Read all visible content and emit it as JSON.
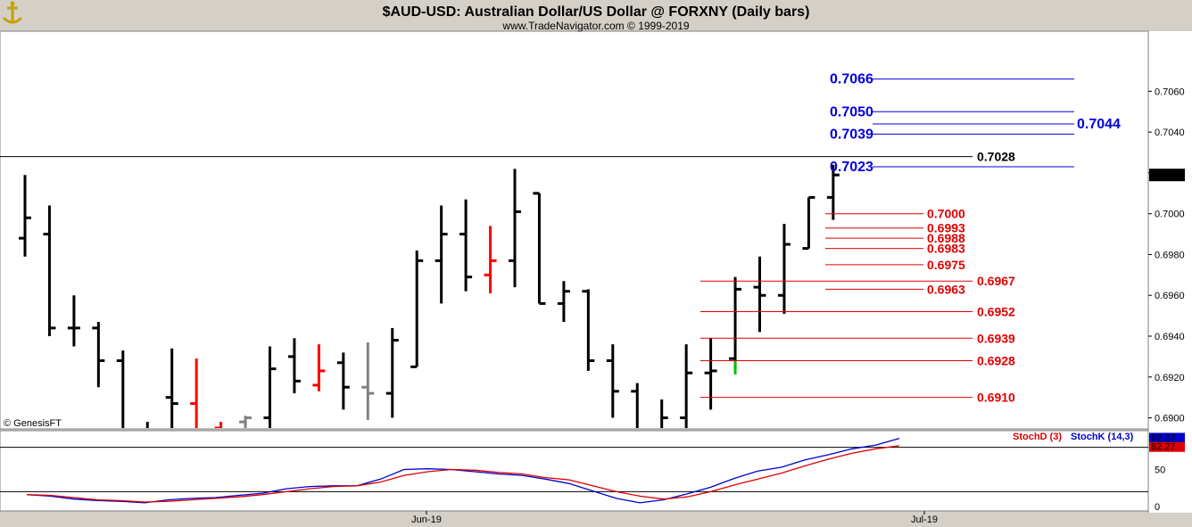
{
  "header": {
    "title": "$AUD-USD:  Australian Dollar/US Dollar @ FORXNY  (Daily bars)",
    "subtitle": "www.TradeNavigator.com © 1999-2019",
    "logo_icon": "anchor-logo-icon"
  },
  "watermark": "© GenesisFT",
  "colors": {
    "up": "#000000",
    "down_red": "#ff0000",
    "gray": "#808080",
    "green": "#00c000",
    "blue_level": "#0000e0",
    "red_level": "#e00000",
    "stoch_k": "#0000cc",
    "stoch_d": "#dd0000"
  },
  "chart_data": [
    {
      "type": "bar",
      "subtype": "ohlc",
      "title": "$AUD-USD:  Australian Dollar/US Dollar @ FORXNY  (Daily bars)",
      "y_ticks": [
        "0.6900",
        "0.6920",
        "0.6940",
        "0.6960",
        "0.6980",
        "0.7000",
        "0.7020",
        "0.7040",
        "0.7060"
      ],
      "ylim": [
        0.6895,
        0.7089
      ],
      "x_ticks": [
        "Jun-19",
        "Jul-19"
      ],
      "last_price": "0.7019",
      "horizontal_line": 0.7028,
      "bars": [
        {
          "o": 0.6988,
          "h": 0.7019,
          "l": 0.6979,
          "c": 0.6998,
          "color": "up"
        },
        {
          "o": 0.699,
          "h": 0.7004,
          "l": 0.694,
          "c": 0.6944,
          "color": "up"
        },
        {
          "o": 0.6944,
          "h": 0.696,
          "l": 0.6935,
          "c": 0.6944,
          "color": "up"
        },
        {
          "o": 0.6944,
          "h": 0.6947,
          "l": 0.6915,
          "c": 0.6928,
          "color": "up"
        },
        {
          "o": 0.6928,
          "h": 0.6933,
          "l": 0.688,
          "c": 0.6894,
          "color": "up"
        },
        {
          "o": 0.6894,
          "h": 0.6898,
          "l": 0.687,
          "c": 0.6888,
          "color": "up"
        },
        {
          "o": 0.691,
          "h": 0.6934,
          "l": 0.689,
          "c": 0.6907,
          "color": "up"
        },
        {
          "o": 0.6907,
          "h": 0.6929,
          "l": 0.688,
          "c": 0.689,
          "color": "red"
        },
        {
          "o": 0.6895,
          "h": 0.6898,
          "l": 0.687,
          "c": 0.688,
          "color": "red"
        },
        {
          "o": 0.6898,
          "h": 0.6901,
          "l": 0.6885,
          "c": 0.69,
          "color": "gray"
        },
        {
          "o": 0.69,
          "h": 0.6935,
          "l": 0.6892,
          "c": 0.6924,
          "color": "up"
        },
        {
          "o": 0.693,
          "h": 0.6939,
          "l": 0.6912,
          "c": 0.6918,
          "color": "up"
        },
        {
          "o": 0.6916,
          "h": 0.6936,
          "l": 0.6913,
          "c": 0.6923,
          "color": "red"
        },
        {
          "o": 0.6927,
          "h": 0.6932,
          "l": 0.6904,
          "c": 0.6915,
          "color": "up"
        },
        {
          "o": 0.6915,
          "h": 0.6937,
          "l": 0.6899,
          "c": 0.6912,
          "color": "gray"
        },
        {
          "o": 0.6912,
          "h": 0.6944,
          "l": 0.69,
          "c": 0.6938,
          "color": "up"
        },
        {
          "o": 0.6925,
          "h": 0.6982,
          "l": 0.6925,
          "c": 0.6977,
          "color": "up"
        },
        {
          "o": 0.6977,
          "h": 0.7004,
          "l": 0.6956,
          "c": 0.699,
          "color": "up"
        },
        {
          "o": 0.699,
          "h": 0.7007,
          "l": 0.6962,
          "c": 0.6969,
          "color": "up"
        },
        {
          "o": 0.697,
          "h": 0.6994,
          "l": 0.6961,
          "c": 0.6977,
          "color": "red"
        },
        {
          "o": 0.6977,
          "h": 0.7022,
          "l": 0.6964,
          "c": 0.7001,
          "color": "up"
        },
        {
          "o": 0.701,
          "h": 0.701,
          "l": 0.6956,
          "c": 0.6956,
          "color": "up"
        },
        {
          "o": 0.6956,
          "h": 0.6967,
          "l": 0.6947,
          "c": 0.6962,
          "color": "up"
        },
        {
          "o": 0.6962,
          "h": 0.6963,
          "l": 0.6923,
          "c": 0.6928,
          "color": "up"
        },
        {
          "o": 0.6928,
          "h": 0.6936,
          "l": 0.69,
          "c": 0.6913,
          "color": "up"
        },
        {
          "o": 0.6913,
          "h": 0.6917,
          "l": 0.688,
          "c": 0.6893,
          "color": "up"
        },
        {
          "o": 0.6893,
          "h": 0.6909,
          "l": 0.688,
          "c": 0.69,
          "color": "up"
        },
        {
          "o": 0.69,
          "h": 0.6936,
          "l": 0.689,
          "c": 0.6922,
          "color": "up"
        },
        {
          "o": 0.6922,
          "h": 0.6939,
          "l": 0.6904,
          "c": 0.6923,
          "color": "up"
        },
        {
          "o": 0.6929,
          "h": 0.6969,
          "l": 0.6924,
          "c": 0.6963,
          "color": "up"
        },
        {
          "o": 0.6964,
          "h": 0.6979,
          "l": 0.6942,
          "c": 0.696,
          "color": "up"
        },
        {
          "o": 0.696,
          "h": 0.6995,
          "l": 0.6951,
          "c": 0.6985,
          "color": "up"
        },
        {
          "o": 0.6983,
          "h": 0.7008,
          "l": 0.6983,
          "c": 0.7008,
          "color": "up"
        },
        {
          "o": 0.7008,
          "h": 0.7024,
          "l": 0.6997,
          "c": 0.7019,
          "color": "up"
        }
      ],
      "green_bar_segment": {
        "bar_index": 29,
        "from": 0.6928,
        "to": 0.6923
      },
      "blue_levels": [
        {
          "label": "0.7066",
          "value": 0.7066
        },
        {
          "label": "0.7050",
          "value": 0.705
        },
        {
          "label": "0.7044",
          "value": 0.7044
        },
        {
          "label": "0.7039",
          "value": 0.7039
        },
        {
          "label": "0.7023",
          "value": 0.7023
        }
      ],
      "black_level": {
        "label": "0.7028",
        "value": 0.7028
      },
      "red_levels": [
        {
          "label": "0.7000",
          "value": 0.7
        },
        {
          "label": "0.6993",
          "value": 0.6993
        },
        {
          "label": "0.6988",
          "value": 0.6988
        },
        {
          "label": "0.6983",
          "value": 0.6983
        },
        {
          "label": "0.6975",
          "value": 0.6975
        },
        {
          "label": "0.6967",
          "value": 0.6967
        },
        {
          "label": "0.6963",
          "value": 0.6963
        },
        {
          "label": "0.6952",
          "value": 0.6952
        },
        {
          "label": "0.6939",
          "value": 0.6939
        },
        {
          "label": "0.6928",
          "value": 0.6928
        },
        {
          "label": "0.6910",
          "value": 0.691
        }
      ]
    },
    {
      "type": "line",
      "y_ticks": [
        "0",
        "50"
      ],
      "ylim": [
        0,
        100
      ],
      "reference_lines": [
        20,
        80
      ],
      "legend": [
        "StochD (3)",
        "StochK (14,3)"
      ],
      "last_values": [
        "82.27",
        "92.27"
      ],
      "series": [
        {
          "name": "StochK (14,3)",
          "color": "stoch_k",
          "values": [
            16,
            14,
            10,
            8,
            7,
            5,
            9,
            11,
            12,
            15,
            18,
            24,
            27,
            28,
            28,
            37,
            50,
            51,
            50,
            47,
            44,
            42,
            37,
            31,
            21,
            11,
            5,
            9,
            17,
            26,
            38,
            48,
            53,
            63,
            70,
            78,
            83,
            92
          ]
        },
        {
          "name": "StochD (3)",
          "color": "stoch_d",
          "values": [
            16,
            15,
            12,
            9,
            8,
            6,
            7,
            9,
            11,
            13,
            16,
            20,
            24,
            27,
            28,
            33,
            42,
            47,
            50,
            49,
            46,
            44,
            39,
            36,
            28,
            20,
            14,
            10,
            13,
            20,
            29,
            37,
            45,
            55,
            64,
            72,
            78,
            82
          ]
        }
      ]
    }
  ]
}
